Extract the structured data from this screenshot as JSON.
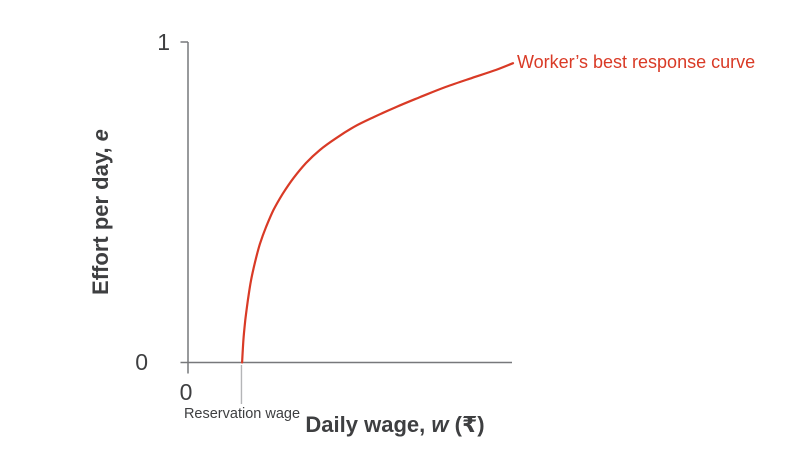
{
  "figure": {
    "background_color": "#ffffff",
    "colors": {
      "curve": "#d93a26",
      "axis": "#77787b",
      "marker_line": "#b4b5b7",
      "text": "#3e3f41"
    }
  },
  "chart_data": {
    "type": "line",
    "title": "",
    "xlabel": "Daily wage, w (₹)",
    "xlabel_parts": {
      "prefix": "Daily wage, ",
      "variable": "w",
      "suffix": " (₹)"
    },
    "ylabel": "Effort per day, e",
    "ylabel_parts": {
      "prefix": "Effort per day, ",
      "variable": "e"
    },
    "ylim": [
      0,
      1
    ],
    "y_ticks": [
      {
        "value": 0,
        "label": "0"
      },
      {
        "value": 1,
        "label": "1"
      }
    ],
    "x_origin_label": "0",
    "x_axis_numeric": false,
    "grid": false,
    "legend_position": "none",
    "x_marker": {
      "label": "Reservation wage",
      "x_frac": 0.165
    },
    "series": [
      {
        "name": "Worker’s best response curve",
        "color": "#d93a26",
        "points_w_frac_effort": [
          [
            0.167,
            0.0
          ],
          [
            0.171,
            0.07
          ],
          [
            0.177,
            0.133
          ],
          [
            0.185,
            0.195
          ],
          [
            0.194,
            0.254
          ],
          [
            0.207,
            0.314
          ],
          [
            0.222,
            0.37
          ],
          [
            0.241,
            0.423
          ],
          [
            0.264,
            0.476
          ],
          [
            0.292,
            0.526
          ],
          [
            0.326,
            0.576
          ],
          [
            0.364,
            0.622
          ],
          [
            0.407,
            0.663
          ],
          [
            0.457,
            0.7
          ],
          [
            0.512,
            0.735
          ],
          [
            0.574,
            0.766
          ],
          [
            0.642,
            0.797
          ],
          [
            0.716,
            0.828
          ],
          [
            0.796,
            0.86
          ],
          [
            0.877,
            0.888
          ],
          [
            0.951,
            0.913
          ],
          [
            1.003,
            0.934
          ]
        ]
      }
    ]
  }
}
